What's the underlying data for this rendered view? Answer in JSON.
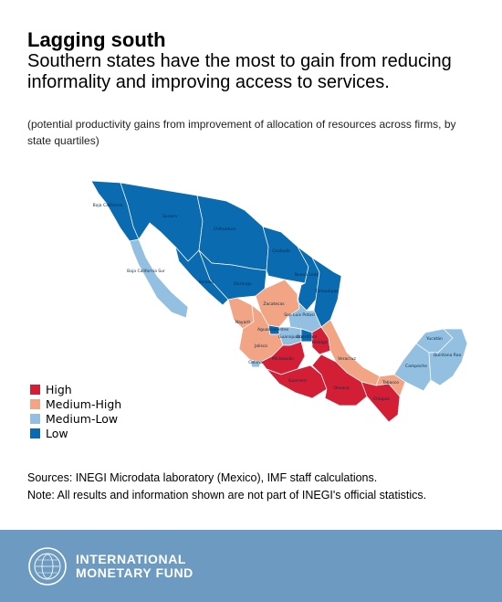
{
  "header": {
    "title": "Lagging south",
    "subtitle": "Southern states have the most to gain from reducing informality and improving access to services.",
    "note": "(potential productivity gains from improvement of allocation of resources across firms, by state quartiles)"
  },
  "colors": {
    "High": "#d31f35",
    "Medium-High": "#f2a584",
    "Medium-Low": "#93c0e0",
    "Low": "#0b6bb1"
  },
  "legend": [
    {
      "label": "High",
      "category": "High"
    },
    {
      "label": "Medium-High",
      "category": "Medium-High"
    },
    {
      "label": "Medium-Low",
      "category": "Medium-Low"
    },
    {
      "label": "Low",
      "category": "Low"
    }
  ],
  "states": [
    {
      "name": "Baja California",
      "category": "Low"
    },
    {
      "name": "Baja California Sur",
      "category": "Medium-Low"
    },
    {
      "name": "Sonora",
      "category": "Low"
    },
    {
      "name": "Chihuahua",
      "category": "Low"
    },
    {
      "name": "Coahuila",
      "category": "Low"
    },
    {
      "name": "Nuevo León",
      "category": "Low"
    },
    {
      "name": "Tamaulipas",
      "category": "Low"
    },
    {
      "name": "Sinaloa",
      "category": "Low"
    },
    {
      "name": "Durango",
      "category": "Low"
    },
    {
      "name": "Zacatecas",
      "category": "Medium-High"
    },
    {
      "name": "San Luis Potosí",
      "category": "Medium-Low"
    },
    {
      "name": "Nayarit",
      "category": "Medium-High"
    },
    {
      "name": "Aguascalientes",
      "category": "Low"
    },
    {
      "name": "Jalisco",
      "category": "Medium-High"
    },
    {
      "name": "Guanajuato",
      "category": "Medium-Low"
    },
    {
      "name": "Querétaro",
      "category": "Low"
    },
    {
      "name": "Hidalgo",
      "category": "High"
    },
    {
      "name": "Colima",
      "category": "Medium-Low"
    },
    {
      "name": "Michoacán",
      "category": "High"
    },
    {
      "name": "Veracruz",
      "category": "Medium-High"
    },
    {
      "name": "Guerrero",
      "category": "High"
    },
    {
      "name": "Oaxaca",
      "category": "High"
    },
    {
      "name": "Chiapas",
      "category": "High"
    },
    {
      "name": "Tabasco",
      "category": "Medium-High"
    },
    {
      "name": "Campeche",
      "category": "Medium-Low"
    },
    {
      "name": "Yucatán",
      "category": "Medium-Low"
    },
    {
      "name": "Quintana Roo",
      "category": "Medium-Low"
    }
  ],
  "sources": "Sources: INEGI Microdata laboratory (Mexico), IMF staff calculations.",
  "note": "Note: All results and information shown are not part of INEGI's official statistics.",
  "footer": {
    "org_line1": "INTERNATIONAL",
    "org_line2": "MONETARY FUND",
    "seal_icon": "imf-seal-icon"
  }
}
